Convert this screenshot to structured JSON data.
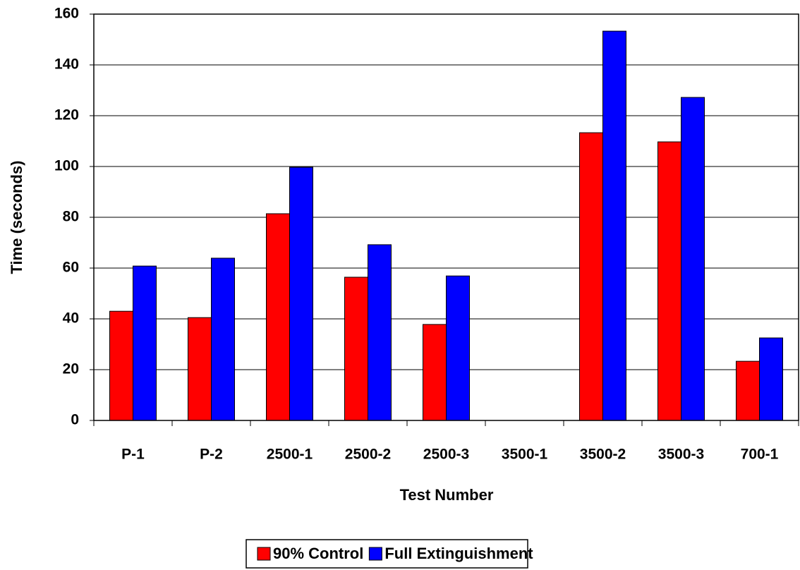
{
  "chart_data": {
    "type": "bar",
    "x_label": "Test Number",
    "y_label": "Time (seconds)",
    "categories": [
      "P-1",
      "P-2",
      "2500-1",
      "2500-2",
      "2500-3",
      "3500-1",
      "3500-2",
      "3500-3",
      "700-1"
    ],
    "series": [
      {
        "name": "90% Control",
        "color": "#ff0000",
        "values": [
          43,
          40.5,
          81.4,
          56.4,
          37.8,
          null,
          113.3,
          109.7,
          23.3
        ]
      },
      {
        "name": "Full Extinguishment",
        "color": "#0000ff",
        "values": [
          60.8,
          63.9,
          99.7,
          69.2,
          56.9,
          null,
          153.3,
          127.2,
          32.5
        ]
      }
    ],
    "ylim": [
      0,
      160
    ],
    "yticks": [
      0,
      20,
      40,
      60,
      80,
      100,
      120,
      140,
      160
    ],
    "grid": true
  }
}
